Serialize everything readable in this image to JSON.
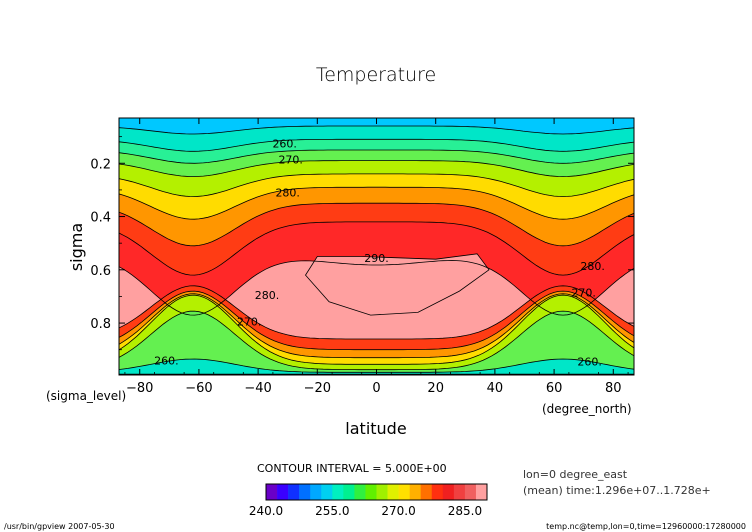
{
  "chart_data": {
    "type": "contour",
    "title": "Temperature",
    "xlabel": "latitude",
    "ylabel": "sigma",
    "x_unit": "(degree_north)",
    "y_unit": "(sigma_level)",
    "xlim": [
      -87,
      87
    ],
    "ylim": [
      0.995,
      0.03
    ],
    "xticks": [
      -80,
      -60,
      -40,
      -20,
      0,
      20,
      40,
      60,
      80
    ],
    "xtick_labels": [
      "−80",
      "−60",
      "−40",
      "−20",
      "0",
      "20",
      "40",
      "60",
      "80"
    ],
    "yticks": [
      0.2,
      0.4,
      0.6,
      0.8
    ],
    "ytick_labels": [
      "0.2",
      "0.4",
      "0.6",
      "0.8"
    ],
    "contour_interval_text": "CONTOUR INTERVAL = 5.000E+00",
    "contour_labels": [
      {
        "text": "260.",
        "lat": -31,
        "sigma": 0.14
      },
      {
        "text": "270.",
        "lat": -29,
        "sigma": 0.2
      },
      {
        "text": "280.",
        "lat": -30,
        "sigma": 0.325
      },
      {
        "text": "290.",
        "lat": 0,
        "sigma": 0.57
      },
      {
        "text": "280.",
        "lat": 73,
        "sigma": 0.6
      },
      {
        "text": "270.",
        "lat": 70,
        "sigma": 0.7
      },
      {
        "text": "280.",
        "lat": -37,
        "sigma": 0.71
      },
      {
        "text": "270.",
        "lat": -43,
        "sigma": 0.81
      },
      {
        "text": "260.",
        "lat": -71,
        "sigma": 0.955
      },
      {
        "text": "260.",
        "lat": 72,
        "sigma": 0.96
      }
    ],
    "levels": [
      240,
      242.5,
      245,
      247.5,
      250,
      252.5,
      255,
      257.5,
      260,
      262.5,
      265,
      267.5,
      270,
      272.5,
      275,
      277.5,
      280,
      282.5,
      285,
      287.5,
      290
    ],
    "colorbar_ticks": [
      240.0,
      255.0,
      270.0,
      285.0
    ],
    "colorbar_tick_labels": [
      "240.0",
      "255.0",
      "270.0",
      "285.0"
    ],
    "colors": [
      "#6a00c8",
      "#3a00ff",
      "#1030ff",
      "#0070ff",
      "#00a8ff",
      "#00d0f0",
      "#00f0c0",
      "#00f090",
      "#30f040",
      "#60f000",
      "#a0f000",
      "#e0f000",
      "#ffe000",
      "#ffb000",
      "#ff7000",
      "#ff3010",
      "#f02020",
      "#f04040",
      "#f06060",
      "#ffa0a0"
    ],
    "bands": [
      {
        "value": 253,
        "color": "#00c8ff",
        "sigma": 0.03,
        "thickness": 0
      },
      {
        "value": 256,
        "color": "#00e6c8",
        "sigma": 0.06,
        "thickness": 0.03
      },
      {
        "value": 259,
        "color": "#28f096",
        "sigma": 0.11,
        "thickness": 0.045
      },
      {
        "value": 262,
        "color": "#64f050",
        "sigma": 0.15,
        "thickness": 0.05
      },
      {
        "value": 266,
        "color": "#b4f000",
        "sigma": 0.19,
        "thickness": 0.06
      },
      {
        "value": 271,
        "color": "#ffdc00",
        "sigma": 0.24,
        "thickness": 0.085
      },
      {
        "value": 276,
        "color": "#ff9600",
        "sigma": 0.29,
        "thickness": 0.12
      },
      {
        "value": 281,
        "color": "#ff3c14",
        "sigma": 0.35,
        "thickness": 0.16
      },
      {
        "value": 286,
        "color": "#ff2828",
        "sigma": 0.42,
        "thickness": 0.2
      },
      {
        "value": 290,
        "color": "#ffa0a0",
        "sigma": 0.54,
        "thickness": 0.23
      }
    ]
  },
  "footer": {
    "command": "/usr/bin/gpview  2007-05-30",
    "file_info": "temp.nc@temp,lon=0,time=12960000:17280000",
    "lon_note": "lon=0 degree_east",
    "mean_note": "(mean) time:1.296e+07..1.728e+"
  }
}
